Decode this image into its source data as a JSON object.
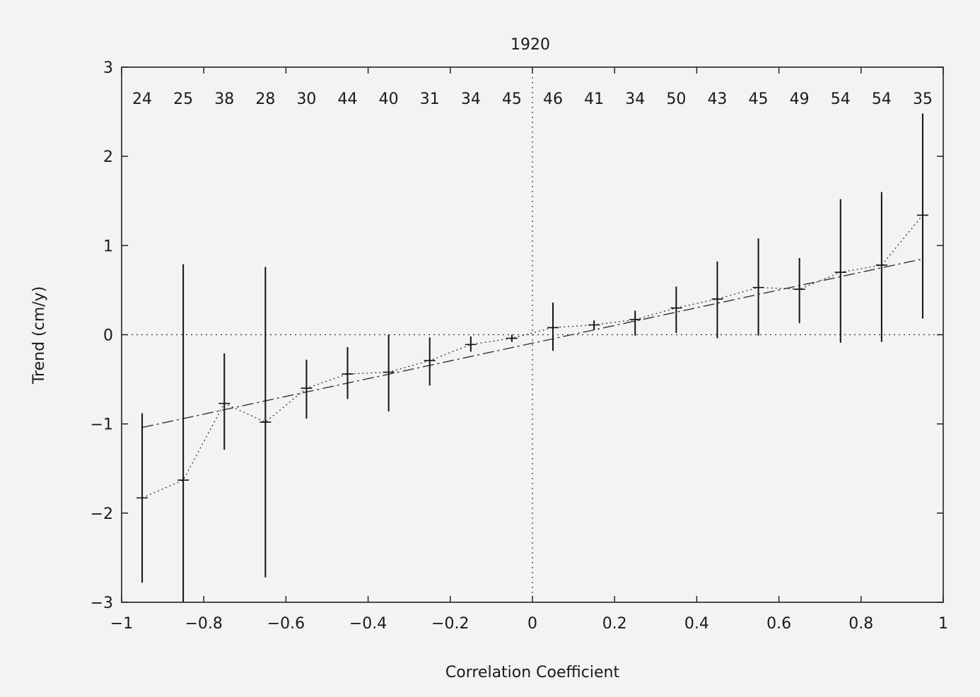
{
  "chart_data": {
    "type": "scatter",
    "title": "1920",
    "xlabel": "Correlation Coefficient",
    "ylabel": "Trend (cm/y)",
    "xlim": [
      -1,
      1
    ],
    "ylim": [
      -3,
      3
    ],
    "xticks": [
      -1,
      -0.8,
      -0.6,
      -0.4,
      -0.2,
      0,
      0.2,
      0.4,
      0.6,
      0.8,
      1
    ],
    "xtick_labels": [
      "−1",
      "−0.8",
      "−0.6",
      "−0.4",
      "−0.2",
      "0",
      "0.2",
      "0.4",
      "0.6",
      "0.8",
      "1"
    ],
    "yticks": [
      -3,
      -2,
      -1,
      0,
      1,
      2,
      3
    ],
    "ytick_labels": [
      "−3",
      "−2",
      "−1",
      "0",
      "1",
      "2",
      "3"
    ],
    "grid": false,
    "x": [
      -0.95,
      -0.85,
      -0.75,
      -0.65,
      -0.55,
      -0.45,
      -0.35,
      -0.25,
      -0.15,
      -0.05,
      0.05,
      0.15,
      0.25,
      0.35,
      0.45,
      0.55,
      0.65,
      0.75,
      0.85,
      0.95
    ],
    "counts": [
      "24",
      "25",
      "38",
      "28",
      "30",
      "44",
      "40",
      "31",
      "34",
      "45",
      "46",
      "41",
      "34",
      "50",
      "43",
      "45",
      "49",
      "54",
      "54",
      "35"
    ],
    "series": [
      {
        "style": "dotted-with-error-bars",
        "values": [
          -1.83,
          -1.63,
          -0.77,
          -0.98,
          -0.6,
          -0.44,
          -0.42,
          -0.29,
          -0.11,
          -0.04,
          0.08,
          0.11,
          0.17,
          0.3,
          0.4,
          0.53,
          0.51,
          0.7,
          0.78,
          1.34
        ],
        "lower": [
          -2.78,
          -3.0,
          -1.29,
          -2.72,
          -0.94,
          -0.72,
          -0.86,
          -0.57,
          -0.19,
          -0.08,
          -0.18,
          0.05,
          -0.01,
          0.02,
          -0.04,
          -0.01,
          0.13,
          -0.09,
          -0.08,
          0.18
        ],
        "upper": [
          -0.88,
          0.79,
          -0.21,
          0.76,
          -0.28,
          -0.14,
          0.0,
          -0.03,
          -0.02,
          0.0,
          0.36,
          0.16,
          0.27,
          0.54,
          0.82,
          1.08,
          0.86,
          1.52,
          1.6,
          2.48
        ]
      },
      {
        "style": "dash-dot-fit",
        "x": [
          -0.95,
          0.95
        ],
        "values": [
          -1.04,
          0.85
        ]
      }
    ]
  }
}
